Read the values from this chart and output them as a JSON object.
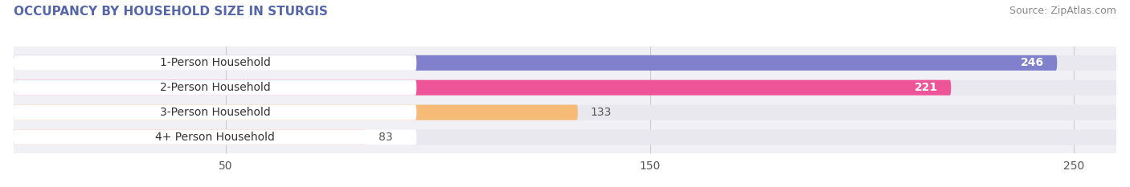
{
  "title": "OCCUPANCY BY HOUSEHOLD SIZE IN STURGIS",
  "source": "Source: ZipAtlas.com",
  "categories": [
    "1-Person Household",
    "2-Person Household",
    "3-Person Household",
    "4+ Person Household"
  ],
  "values": [
    246,
    221,
    133,
    83
  ],
  "bar_colors": [
    "#8080cc",
    "#ee5599",
    "#f5bb77",
    "#f0a090"
  ],
  "bar_bg_color": "#e8e8ee",
  "xlim": [
    0,
    260
  ],
  "xticks": [
    50,
    150,
    250
  ],
  "label_color_inside": [
    "#ffffff",
    "#ffffff",
    "#666666",
    "#666666"
  ],
  "title_fontsize": 11,
  "source_fontsize": 9,
  "tick_fontsize": 10,
  "bar_label_fontsize": 10,
  "cat_label_fontsize": 10,
  "title_color": "#5566aa",
  "background_color": "#ffffff",
  "plot_bg_color": "#f0f0f5",
  "label_box_color": "#ffffff",
  "text_color": "#333333"
}
